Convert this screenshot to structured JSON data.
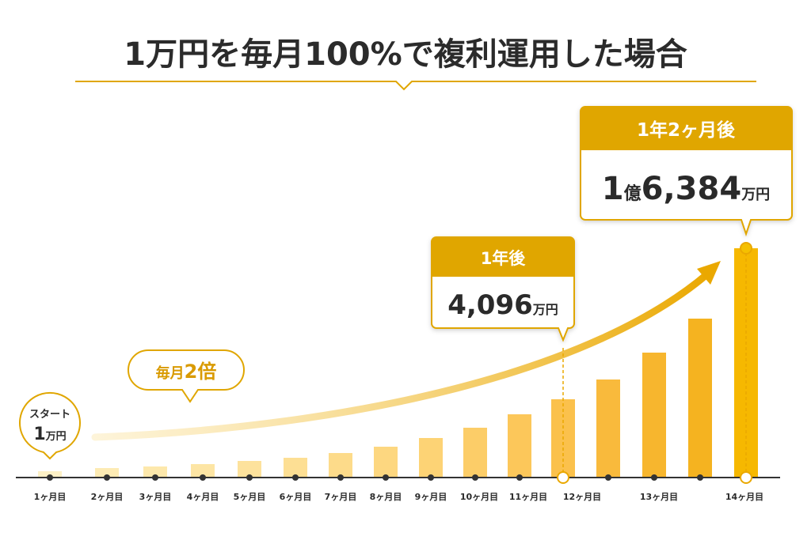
{
  "title": "1万円を毎月100%で複利運用した場合",
  "months": [
    "1ヶ月目",
    "2ヶ月目",
    "3ヶ月目",
    "4ヶ月目",
    "5ヶ月目",
    "6ヶ月目",
    "7ヶ月目",
    "8ヶ月目",
    "9ヶ月目",
    "10ヶ月目",
    "11ヶ月目",
    "12ヶ月目",
    "13ヶ月目",
    "14ヶ月目"
  ],
  "start": {
    "label": "スタート",
    "amount": "1",
    "unit": "万円"
  },
  "growth": {
    "prefix": "毎月",
    "rate": "2倍"
  },
  "year1": {
    "heading": "1年後",
    "amount": "4,096",
    "unit": "万円"
  },
  "final": {
    "heading": "1年2ヶ月後",
    "oku_amount": "1",
    "oku": "億",
    "amount": "6,384",
    "unit": "万円"
  }
}
